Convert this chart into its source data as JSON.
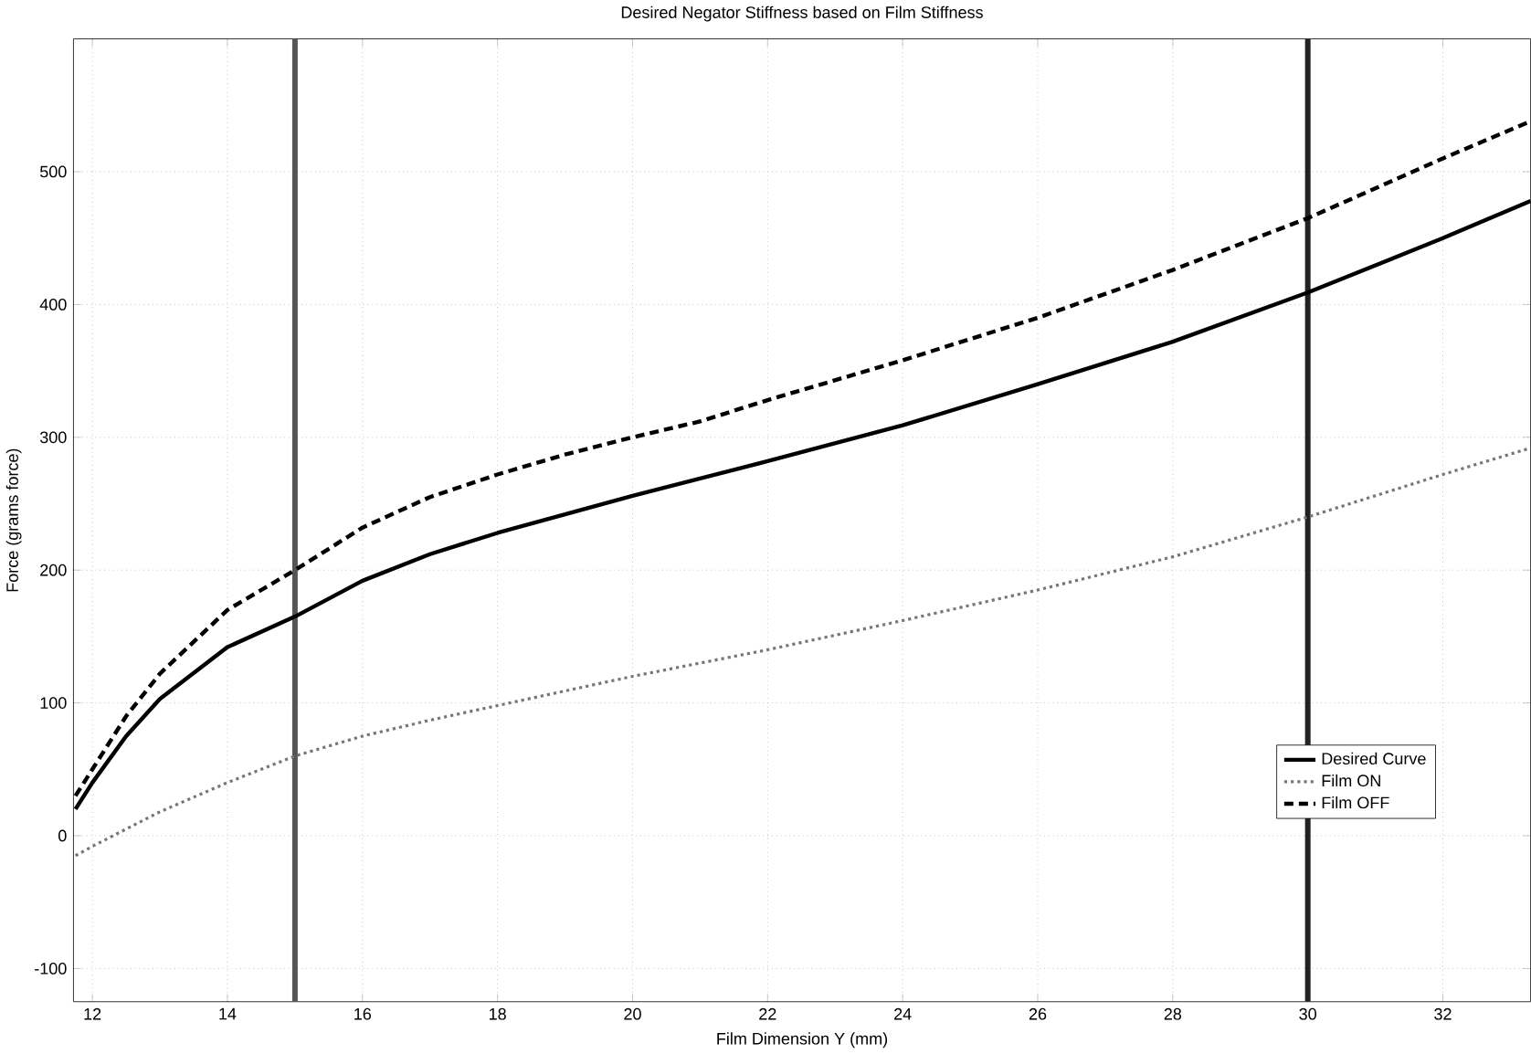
{
  "chart_data": {
    "type": "line",
    "title": "Desired Negator Stiffness based on Film Stiffness",
    "xlabel": "Film Dimension Y (mm)",
    "ylabel": "Force (grams force)",
    "xlim": [
      11.72,
      33.3
    ],
    "ylim": [
      -125,
      600
    ],
    "xticks": [
      12,
      14,
      16,
      18,
      20,
      22,
      24,
      26,
      28,
      30,
      32
    ],
    "yticks": [
      -100,
      0,
      100,
      200,
      300,
      400,
      500
    ],
    "grid": true,
    "legend": "bottom right",
    "marker": "none",
    "series": [
      {
        "name": "Desired Curve",
        "color": "#000000",
        "line_style": "solid",
        "x": [
          11.75,
          12,
          12.5,
          13,
          14,
          15,
          16,
          17,
          18,
          19,
          20,
          22,
          24,
          26,
          28,
          30,
          32,
          33.3
        ],
        "values": [
          20,
          40,
          75,
          103,
          142,
          165,
          192,
          212,
          228,
          242,
          256,
          282,
          309,
          340,
          372,
          409,
          450,
          478
        ]
      },
      {
        "name": "Film ON",
        "color": "#777777",
        "line_style": "dotted",
        "x": [
          11.75,
          12,
          13,
          14,
          15,
          16,
          17,
          18,
          20,
          22,
          24,
          26,
          28,
          30,
          32,
          33.3
        ],
        "values": [
          -15,
          -8,
          18,
          40,
          60,
          75,
          87,
          98,
          120,
          140,
          162,
          185,
          210,
          240,
          272,
          292
        ]
      },
      {
        "name": "Film OFF",
        "color": "#000000",
        "line_style": "dashed",
        "x": [
          11.75,
          12,
          12.5,
          13,
          14,
          15,
          16,
          17,
          18,
          19,
          20,
          21,
          22,
          24,
          26,
          28,
          30,
          32,
          33.3
        ],
        "values": [
          30,
          50,
          90,
          122,
          170,
          200,
          232,
          255,
          272,
          287,
          300,
          312,
          328,
          358,
          390,
          426,
          465,
          510,
          538
        ]
      }
    ],
    "ref_lines": [
      {
        "axis": "x",
        "value": 15,
        "color": "#555555"
      },
      {
        "axis": "x",
        "value": 30,
        "color": "#222222"
      }
    ]
  }
}
